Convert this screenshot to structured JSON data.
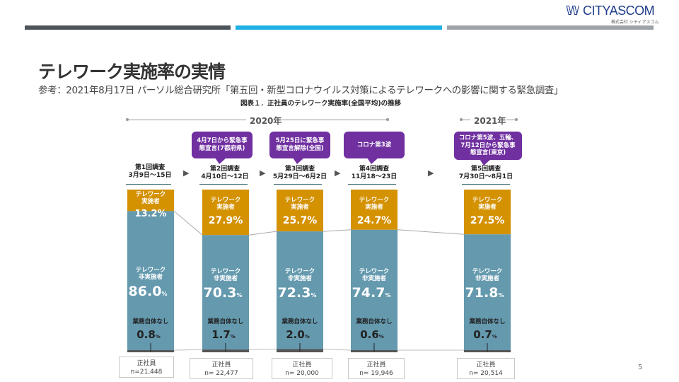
{
  "logo": {
    "mark": "✦",
    "name": "CITYASCOM",
    "sub": "株式会社 シティアスコム"
  },
  "header_bands": [
    "#4a545a",
    "#1eb0e6",
    "#9ea3a8"
  ],
  "title": "テレワーク実施率の実情",
  "subtitle": "参考：2021年8月17日 パーソル総合研究所「第五回・新型コロナウイルス対策によるテレワークへの影響に関する緊急調査」",
  "page_number": "5",
  "colors": {
    "implemented": "#d49100",
    "not_implemented": "#6499ae",
    "no_work": "#555555",
    "callout": "#7030a0"
  },
  "chart_data": {
    "type": "bar",
    "stacked": true,
    "title": "図表１．正社員のテレワーク実施率(全国平均)の推移",
    "year_labels": [
      "2020年",
      "2021年"
    ],
    "categories": [
      "第1回調査\n3月9日〜15日",
      "第2回調査\n4月10日〜12日",
      "第3回調査\n5月29日〜6月2日",
      "第4回調査\n11月18〜23日",
      "第5回調査\n7月30日〜8月1日"
    ],
    "callouts": [
      "",
      "4月7日から緊急事\n態宣言(7都府県)",
      "5月25日に緊急事\n態宣言解除(全国)",
      "コロナ第3波",
      "コロナ第5波、五輪、\n7月12日から緊急事\n態宣言(東京)"
    ],
    "series": [
      {
        "name": "テレワーク実施者",
        "values": [
          13.2,
          27.9,
          25.7,
          24.7,
          27.5
        ]
      },
      {
        "name": "テレワーク非実施者",
        "values": [
          86.0,
          70.3,
          72.3,
          74.7,
          71.8
        ]
      },
      {
        "name": "業務自体なし",
        "values": [
          0.8,
          1.7,
          2.0,
          0.6,
          0.7
        ]
      }
    ],
    "segment_labels": {
      "implemented": "テレワーク\n実施者",
      "not_implemented": "テレワーク\n非実施者",
      "no_work": "業務自体なし"
    },
    "unit": "%",
    "sample_label": "正社員",
    "samples": [
      "n=21,448",
      "n= 22,477",
      "n= 20,000",
      "n= 19,946",
      "n= 20,514"
    ],
    "ylim": [
      0,
      100
    ]
  }
}
